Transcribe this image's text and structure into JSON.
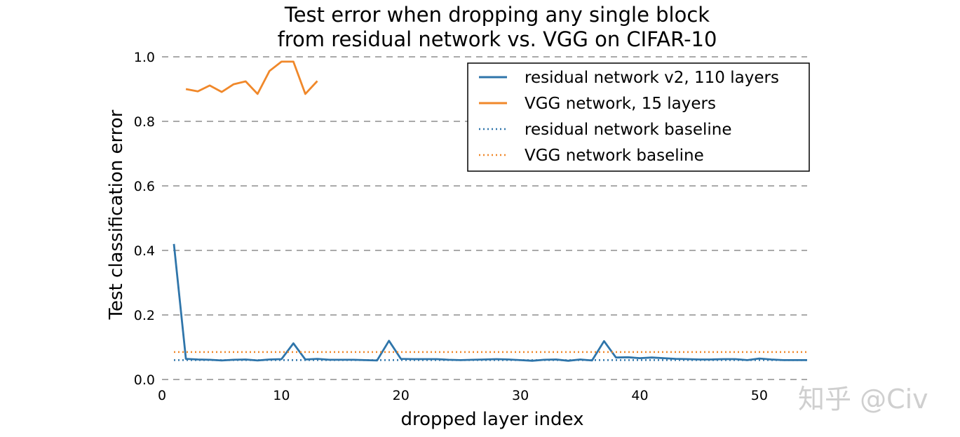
{
  "chart_data": {
    "type": "line",
    "title_lines": [
      "Test error when dropping any single block",
      "from residual network vs. VGG on CIFAR-10"
    ],
    "xlabel": "dropped layer index",
    "ylabel": "Test classification error",
    "xlim": [
      0,
      54
    ],
    "ylim": [
      0.0,
      1.0
    ],
    "xticks": [
      0,
      10,
      20,
      30,
      40,
      50
    ],
    "yticks": [
      0.0,
      0.2,
      0.4,
      0.6,
      0.8,
      1.0
    ],
    "xtick_labels": [
      "0",
      "10",
      "20",
      "30",
      "40",
      "50"
    ],
    "ytick_labels": [
      "0.0",
      "0.2",
      "0.4",
      "0.6",
      "0.8",
      "1.0"
    ],
    "grid": "horizontal-dashed",
    "legend_position": "upper-right",
    "series": [
      {
        "name": "residual network v2, 110 layers",
        "style": "solid",
        "color": "#2f75aa",
        "x": [
          1,
          2,
          3,
          4,
          5,
          6,
          7,
          8,
          9,
          10,
          11,
          12,
          13,
          14,
          15,
          16,
          17,
          18,
          19,
          20,
          21,
          22,
          23,
          24,
          25,
          26,
          27,
          28,
          29,
          30,
          31,
          32,
          33,
          34,
          35,
          36,
          37,
          38,
          39,
          40,
          41,
          42,
          43,
          44,
          45,
          46,
          47,
          48,
          49,
          50,
          51,
          52,
          53,
          54
        ],
        "values": [
          0.42,
          0.064,
          0.062,
          0.061,
          0.059,
          0.061,
          0.062,
          0.059,
          0.062,
          0.063,
          0.112,
          0.062,
          0.064,
          0.061,
          0.061,
          0.061,
          0.06,
          0.059,
          0.12,
          0.064,
          0.063,
          0.063,
          0.063,
          0.061,
          0.06,
          0.061,
          0.062,
          0.063,
          0.062,
          0.06,
          0.058,
          0.061,
          0.062,
          0.058,
          0.062,
          0.059,
          0.119,
          0.068,
          0.069,
          0.066,
          0.068,
          0.066,
          0.064,
          0.063,
          0.062,
          0.062,
          0.063,
          0.063,
          0.06,
          0.065,
          0.062,
          0.06,
          0.06,
          0.06
        ]
      },
      {
        "name": "VGG network, 15 layers",
        "style": "solid",
        "color": "#f0882a",
        "x": [
          2,
          3,
          4,
          5,
          6,
          7,
          8,
          9,
          10,
          11,
          12,
          13
        ],
        "values": [
          0.9,
          0.893,
          0.911,
          0.891,
          0.915,
          0.924,
          0.885,
          0.956,
          0.985,
          0.985,
          0.885,
          0.925
        ]
      },
      {
        "name": "residual network baseline",
        "style": "dotted",
        "color": "#2f75aa",
        "x": [
          1,
          54
        ],
        "values": [
          0.06,
          0.06
        ]
      },
      {
        "name": "VGG network baseline",
        "style": "dotted",
        "color": "#f0882a",
        "x": [
          1,
          54
        ],
        "values": [
          0.085,
          0.085
        ]
      }
    ]
  },
  "watermark": "知乎 @Civ"
}
